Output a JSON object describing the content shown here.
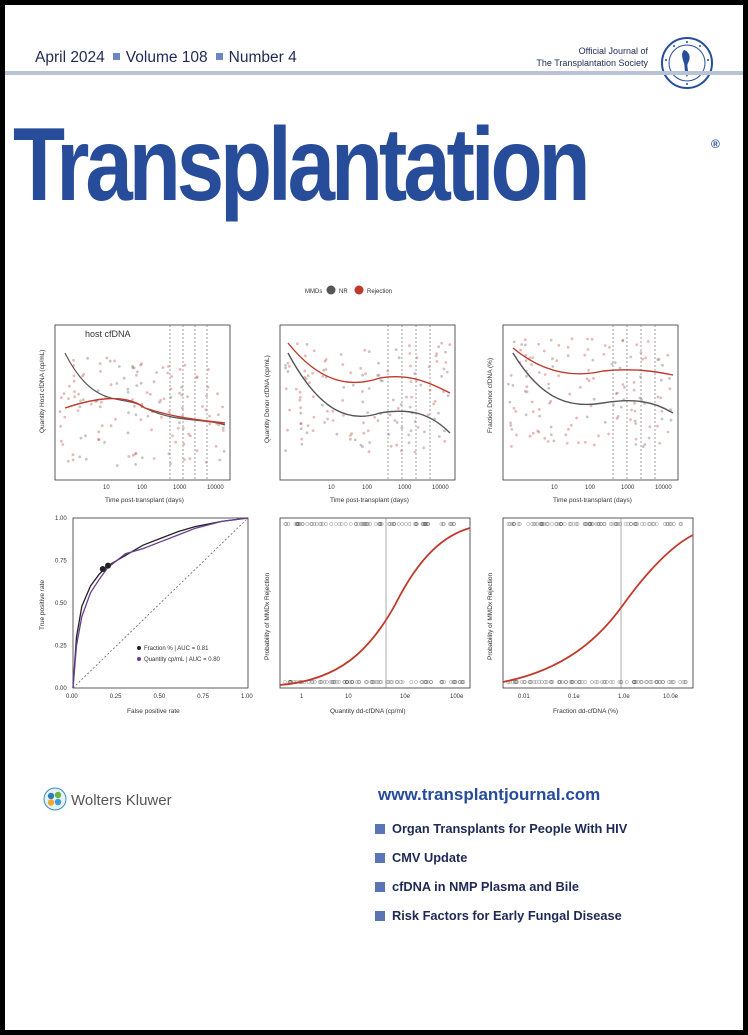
{
  "issue": {
    "date": "April 2024",
    "volume": "Volume 108",
    "number": "Number 4"
  },
  "official": {
    "line1": "Official Journal of",
    "line2": "The Transplantation Society"
  },
  "title": "Transplantation",
  "reg_mark": "®",
  "figure": {
    "legend": {
      "label": "MMDs",
      "series": [
        "NR",
        "Rejection"
      ]
    },
    "panels_top": [
      {
        "tag": "host cfDNA",
        "ylabel": "Quantity Host cfDNA (cp/mL)",
        "xlabel": "Time post-transplant (days)",
        "xticks": [
          "10",
          "100",
          "1000",
          "10000"
        ]
      },
      {
        "tag": "",
        "ylabel": "Quantity Donor cfDNA (cp/mL)",
        "xlabel": "Time post-transplant (days)",
        "xticks": [
          "10",
          "100",
          "1000",
          "10000"
        ]
      },
      {
        "tag": "",
        "ylabel": "Fraction Donor cfDNA (%)",
        "xlabel": "Time post-transplant (days)",
        "xticks": [
          "10",
          "100",
          "1000",
          "10000"
        ]
      }
    ],
    "roc": {
      "ylabel": "True positive rate",
      "xlabel": "False positive rate",
      "ticks": [
        "0.00",
        "0.25",
        "0.50",
        "0.75",
        "1.00"
      ],
      "legend": [
        "Fraction % | AUC = 0.81",
        "Quantity cp/mL | AUC = 0.80"
      ]
    },
    "logit": [
      {
        "ylabel": "Probability of MMDx Rejection",
        "xlabel": "Quantity dd-cfDNA (cp/ml)",
        "xticks": [
          "1",
          "10",
          "10e",
          "100e"
        ]
      },
      {
        "ylabel": "Probability of MMDx Rejection",
        "xlabel": "Fraction dd-cfDNA (%)",
        "xticks": [
          "0.01",
          "0.1e",
          "1.0e",
          "10.0e"
        ]
      }
    ]
  },
  "chart_data": [
    {
      "type": "line",
      "title": "",
      "xlabel": "False positive rate",
      "ylabel": "True positive rate",
      "xlim": [
        0,
        1
      ],
      "ylim": [
        0,
        1
      ],
      "series": [
        {
          "name": "Fraction % | AUC = 0.81",
          "x": [
            0,
            0.02,
            0.05,
            0.1,
            0.15,
            0.2,
            0.3,
            0.4,
            0.5,
            0.6,
            0.7,
            0.85,
            1.0
          ],
          "y": [
            0,
            0.3,
            0.48,
            0.6,
            0.67,
            0.72,
            0.78,
            0.84,
            0.88,
            0.92,
            0.95,
            0.98,
            1.0
          ]
        },
        {
          "name": "Quantity cp/mL | AUC = 0.80",
          "x": [
            0,
            0.02,
            0.05,
            0.1,
            0.15,
            0.2,
            0.3,
            0.4,
            0.5,
            0.6,
            0.7,
            0.85,
            1.0
          ],
          "y": [
            0,
            0.25,
            0.42,
            0.56,
            0.64,
            0.71,
            0.79,
            0.82,
            0.86,
            0.9,
            0.94,
            0.98,
            1.0
          ]
        }
      ]
    }
  ],
  "publisher": {
    "name": "Wolters Kluwer"
  },
  "website": "www.transplantjournal.com",
  "headlines": [
    "Organ Transplants for People With HIV",
    "CMV Update",
    "cfDNA in NMP Plasma and Bile",
    "Risk Factors for Early Fungal Disease"
  ],
  "colors": {
    "brand_blue": "#264c9a",
    "rejection_red": "#c0392b",
    "nr_gray": "#555555"
  }
}
